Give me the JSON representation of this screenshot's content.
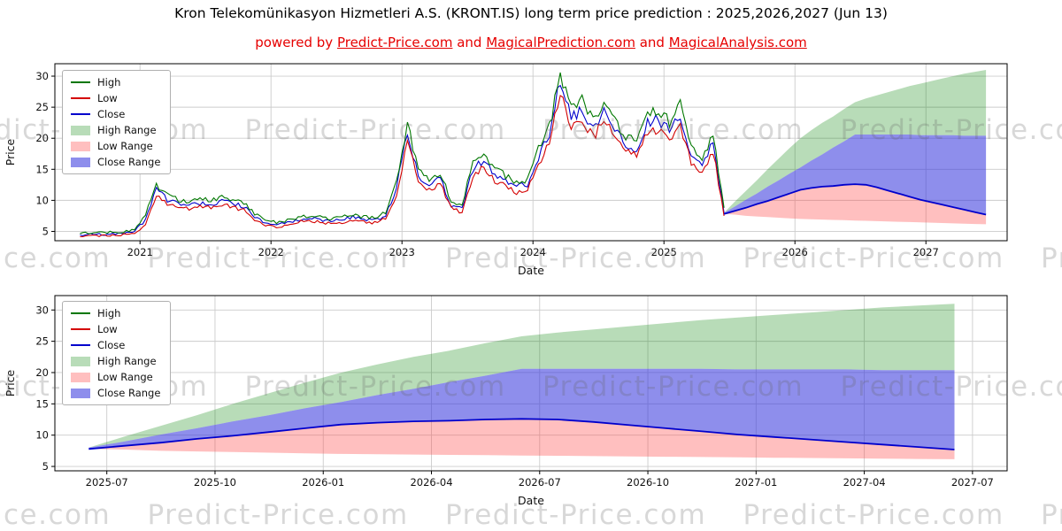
{
  "page": {
    "title": "Kron Telekomünikasyon Hizmetleri A.S. (KRONT.IS) long term price prediction : 2025,2026,2027 (Jun 13)",
    "subtitle_parts": [
      {
        "text": "powered by ",
        "underline": false
      },
      {
        "text": "Predict-Price.com",
        "underline": true
      },
      {
        "text": " and ",
        "underline": false
      },
      {
        "text": "MagicalPrediction.com",
        "underline": true
      },
      {
        "text": " and ",
        "underline": false
      },
      {
        "text": "MagicalAnalysis.com",
        "underline": true
      }
    ],
    "watermark": "Predict-Price.com"
  },
  "legend": [
    {
      "label": "High",
      "swatch": "line",
      "color": "#007700"
    },
    {
      "label": "Low",
      "swatch": "line",
      "color": "#d40000"
    },
    {
      "label": "Close",
      "swatch": "line",
      "color": "#0000cc"
    },
    {
      "label": "High Range",
      "swatch": "patch",
      "color": "rgba(0,128,0,0.28)"
    },
    {
      "label": "Low Range",
      "swatch": "patch",
      "color": "rgba(255,60,60,0.33)"
    },
    {
      "label": "Close Range",
      "swatch": "patch",
      "color": "rgba(50,50,220,0.55)"
    }
  ],
  "chart_data": {
    "type": "line",
    "title": "Kron Telekomünikasyon Hizmetleri A.S. (KRONT.IS) long term price prediction : 2025,2026,2027 (Jun 13)",
    "historical": {
      "start": "2020-07",
      "end": "2025-06",
      "freq": "monthly",
      "close": [
        4.4,
        4.5,
        4.5,
        4.6,
        4.7,
        5.0,
        6.8,
        11.8,
        10.1,
        9.5,
        9.2,
        9.6,
        9.4,
        9.8,
        9.5,
        9.1,
        7.2,
        6.3,
        6.1,
        6.4,
        6.9,
        7.1,
        6.9,
        6.6,
        6.9,
        7.3,
        6.9,
        6.8,
        7.5,
        12.0,
        21.0,
        13.8,
        12.6,
        13.6,
        9.3,
        8.6,
        15.0,
        16.5,
        14.0,
        13.2,
        12.1,
        12.6,
        17.0,
        20.5,
        29.3,
        23.0,
        25.0,
        21.3,
        24.3,
        21.5,
        18.8,
        18.3,
        22.3,
        23.0,
        21.3,
        23.8,
        17.2,
        15.8,
        19.3,
        8.0
      ],
      "high": [
        4.7,
        4.8,
        4.8,
        4.9,
        5.0,
        5.3,
        7.6,
        12.6,
        10.8,
        10.1,
        9.8,
        10.2,
        10.0,
        10.4,
        10.1,
        9.7,
        7.8,
        6.8,
        6.5,
        6.8,
        7.3,
        7.5,
        7.3,
        7.0,
        7.3,
        7.8,
        7.3,
        7.2,
        8.0,
        13.0,
        22.4,
        14.8,
        13.4,
        14.5,
        10.0,
        9.2,
        16.0,
        17.5,
        14.9,
        14.0,
        12.9,
        13.4,
        18.2,
        21.8,
        30.5,
        24.5,
        26.5,
        22.6,
        25.7,
        22.8,
        20.0,
        19.4,
        23.6,
        24.4,
        22.6,
        25.5,
        18.3,
        16.8,
        20.5,
        8.8
      ],
      "low": [
        4.2,
        4.3,
        4.3,
        4.4,
        4.5,
        4.7,
        6.2,
        11.0,
        9.4,
        8.9,
        8.6,
        9.0,
        8.8,
        9.2,
        8.9,
        8.5,
        6.7,
        5.9,
        5.7,
        6.0,
        6.5,
        6.7,
        6.5,
        6.2,
        6.5,
        6.9,
        6.5,
        6.4,
        7.0,
        11.1,
        19.6,
        12.9,
        11.8,
        12.7,
        8.7,
        8.0,
        14.0,
        15.5,
        13.1,
        12.4,
        11.3,
        11.8,
        15.9,
        19.3,
        27.5,
        21.6,
        23.5,
        20.0,
        22.8,
        20.2,
        17.6,
        17.2,
        21.0,
        21.6,
        20.0,
        22.3,
        16.1,
        14.8,
        18.1,
        7.5
      ]
    },
    "forecast": {
      "start": "2025-06",
      "end": "2027-06",
      "freq": "monthly",
      "high_range_top": [
        8.0,
        9.8,
        11.5,
        13.2,
        15.0,
        16.7,
        18.4,
        20.0,
        21.3,
        22.5,
        23.5,
        24.7,
        25.8,
        26.4,
        26.9,
        27.4,
        27.9,
        28.4,
        28.8,
        29.2,
        29.6,
        30.0,
        30.4,
        30.7,
        31.0
      ],
      "close_range_top": [
        8.0,
        9.0,
        10.1,
        11.1,
        12.2,
        13.2,
        14.3,
        15.3,
        16.4,
        17.4,
        18.5,
        19.5,
        20.6,
        20.6,
        20.6,
        20.6,
        20.6,
        20.6,
        20.5,
        20.5,
        20.5,
        20.5,
        20.4,
        20.4,
        20.4
      ],
      "close": [
        7.8,
        8.3,
        8.8,
        9.4,
        9.9,
        10.5,
        11.1,
        11.7,
        12.0,
        12.2,
        12.3,
        12.5,
        12.6,
        12.5,
        12.1,
        11.6,
        11.1,
        10.6,
        10.1,
        9.7,
        9.3,
        8.9,
        8.5,
        8.1,
        7.7
      ],
      "low_range_bottom": [
        7.8,
        7.7,
        7.5,
        7.4,
        7.3,
        7.2,
        7.1,
        7.0,
        6.95,
        6.9,
        6.85,
        6.8,
        6.75,
        6.7,
        6.65,
        6.6,
        6.55,
        6.5,
        6.45,
        6.4,
        6.35,
        6.3,
        6.25,
        6.2,
        6.15
      ]
    },
    "charts": [
      {
        "name": "history_and_forecast",
        "xlabel": "Date",
        "ylabel": "Price",
        "x_tick_labels": [
          "2021",
          "2022",
          "2023",
          "2024",
          "2025",
          "2026",
          "2027"
        ],
        "x_tick_values": [
          2021,
          2022,
          2023,
          2024,
          2025,
          2026,
          2027
        ],
        "y_ticks": [
          5,
          10,
          15,
          20,
          25,
          30
        ],
        "xlim": [
          2020.35,
          2027.62
        ],
        "ylim": [
          3.5,
          32.0
        ],
        "grid": true,
        "legend_position": "upper left"
      },
      {
        "name": "forecast_detail",
        "xlabel": "Date",
        "ylabel": "Price",
        "x_tick_labels": [
          "2025-07",
          "2025-10",
          "2026-01",
          "2026-04",
          "2026-07",
          "2026-10",
          "2027-01",
          "2027-04",
          "2027-07"
        ],
        "x_tick_values": [
          2025.5,
          2025.75,
          2026.0,
          2026.25,
          2026.5,
          2026.75,
          2027.0,
          2027.25,
          2027.5
        ],
        "y_ticks": [
          5,
          10,
          15,
          20,
          25,
          30
        ],
        "xlim": [
          2025.38,
          2027.58
        ],
        "ylim": [
          4.3,
          32.3
        ],
        "grid": true,
        "legend_position": "upper left"
      }
    ]
  }
}
